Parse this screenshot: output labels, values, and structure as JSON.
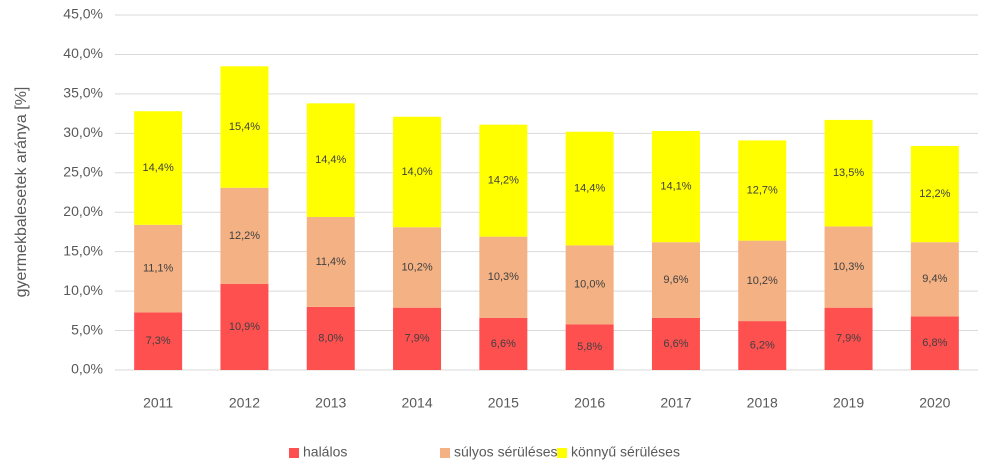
{
  "chart_data": {
    "type": "stacked_bar",
    "ylabel": "gyermekbalesetek aránya [%]",
    "categories": [
      "2011",
      "2012",
      "2013",
      "2014",
      "2015",
      "2016",
      "2017",
      "2018",
      "2019",
      "2020"
    ],
    "series": [
      {
        "name": "halálos",
        "color": "#ff5050",
        "values": [
          7.3,
          10.9,
          8.0,
          7.9,
          6.6,
          5.8,
          6.6,
          6.2,
          7.9,
          6.8
        ],
        "value_labels": [
          "7,3%",
          "10,9%",
          "8,0%",
          "7,9%",
          "6,6%",
          "5,8%",
          "6,6%",
          "6,2%",
          "7,9%",
          "6,8%"
        ]
      },
      {
        "name": "súlyos sérüléses",
        "color": "#f4b183",
        "values": [
          11.1,
          12.2,
          11.4,
          10.2,
          10.3,
          10.0,
          9.6,
          10.2,
          10.3,
          9.4
        ],
        "value_labels": [
          "11,1%",
          "12,2%",
          "11,4%",
          "10,2%",
          "10,3%",
          "10,0%",
          "9,6%",
          "10,2%",
          "10,3%",
          "9,4%"
        ]
      },
      {
        "name": "könnyű sérüléses",
        "color": "#ffff00",
        "values": [
          14.4,
          15.4,
          14.4,
          14.0,
          14.2,
          14.4,
          14.1,
          12.7,
          13.5,
          12.2
        ],
        "value_labels": [
          "14,4%",
          "15,4%",
          "14,4%",
          "14,0%",
          "14,2%",
          "14,4%",
          "14,1%",
          "12,7%",
          "13,5%",
          "12,2%"
        ]
      }
    ],
    "ylim": [
      0,
      45
    ],
    "yticks": [
      {
        "value": 0,
        "label": "0,0%"
      },
      {
        "value": 5,
        "label": "5,0%"
      },
      {
        "value": 10,
        "label": "10,0%"
      },
      {
        "value": 15,
        "label": "15,0%"
      },
      {
        "value": 20,
        "label": "20,0%"
      },
      {
        "value": 25,
        "label": "25,0%"
      },
      {
        "value": 30,
        "label": "30,0%"
      },
      {
        "value": 35,
        "label": "35,0%"
      },
      {
        "value": 40,
        "label": "40,0%"
      },
      {
        "value": 45,
        "label": "45,0%"
      }
    ],
    "grid": true,
    "legend": "bottom"
  }
}
